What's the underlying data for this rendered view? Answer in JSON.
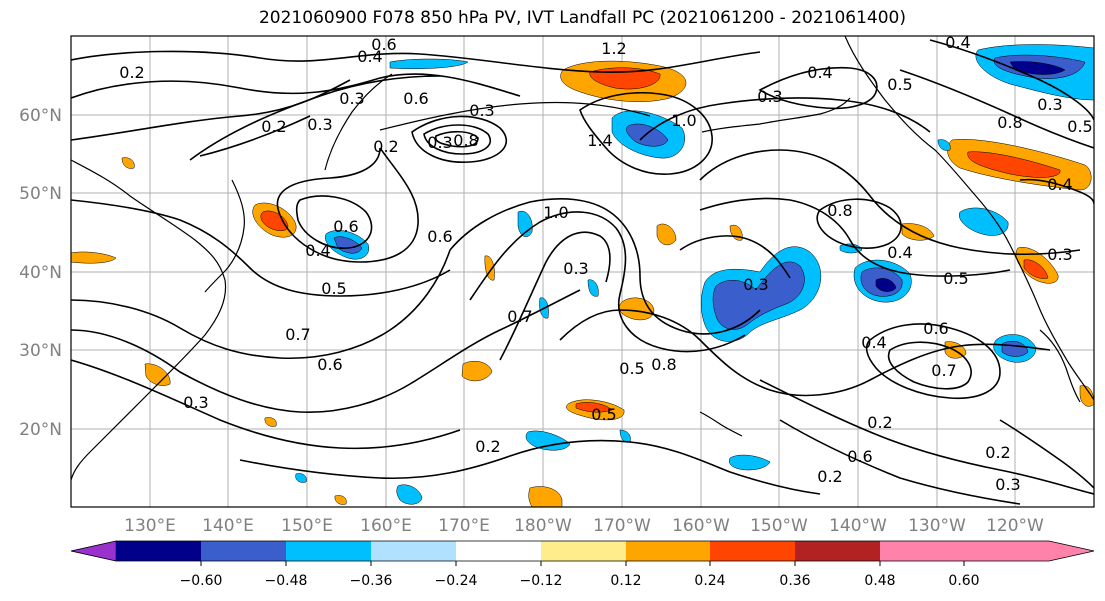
{
  "title": "2021060900 F078 850 hPa PV, IVT Landfall PC (2021061200 - 2021061400)",
  "map": {
    "latitude_labels": [
      "60°N",
      "50°N",
      "40°N",
      "30°N",
      "20°N"
    ],
    "longitude_labels": [
      "130°E",
      "140°E",
      "150°E",
      "160°E",
      "170°E",
      "180°W",
      "170°W",
      "160°W",
      "150°W",
      "140°W",
      "130°W",
      "120°W"
    ],
    "contour_labels": [
      "0.2",
      "0.4",
      "0.6",
      "1.2",
      "0.3",
      "0.2",
      "0.3",
      "0.6",
      "0.3",
      "0.2",
      "0.3",
      "0.8",
      "1.4",
      "1.0",
      "0.3",
      "0.4",
      "0.5",
      "0.4",
      "0.8",
      "0.3",
      "0.5",
      "0.4",
      "0.8",
      "0.4",
      "0.5",
      "0.3",
      "0.7",
      "1.0",
      "0.3",
      "0.5",
      "0.8",
      "0.6",
      "0.6",
      "0.4",
      "0.5",
      "0.7",
      "0.6",
      "0.3",
      "0.2",
      "0.5",
      "0.2",
      "0.6",
      "0.2",
      "0.2",
      "0.3",
      "0.3",
      "0.7",
      "0.6",
      "0.4"
    ],
    "colors": {
      "coast": "#000000",
      "grid": "#b0b0b0",
      "contour": "#000000"
    }
  },
  "colorbar": {
    "tick_labels": [
      "−0.60",
      "−0.48",
      "−0.36",
      "−0.24",
      "−0.12",
      "0.12",
      "0.24",
      "0.36",
      "0.48",
      "0.60"
    ],
    "colors": [
      "#9932cc",
      "#00008b",
      "#3a5fcd",
      "#00bfff",
      "#b0e2ff",
      "#ffffff",
      "#ffec8b",
      "#ffa500",
      "#ff4500",
      "#b22222",
      "#ff82ab"
    ]
  }
}
